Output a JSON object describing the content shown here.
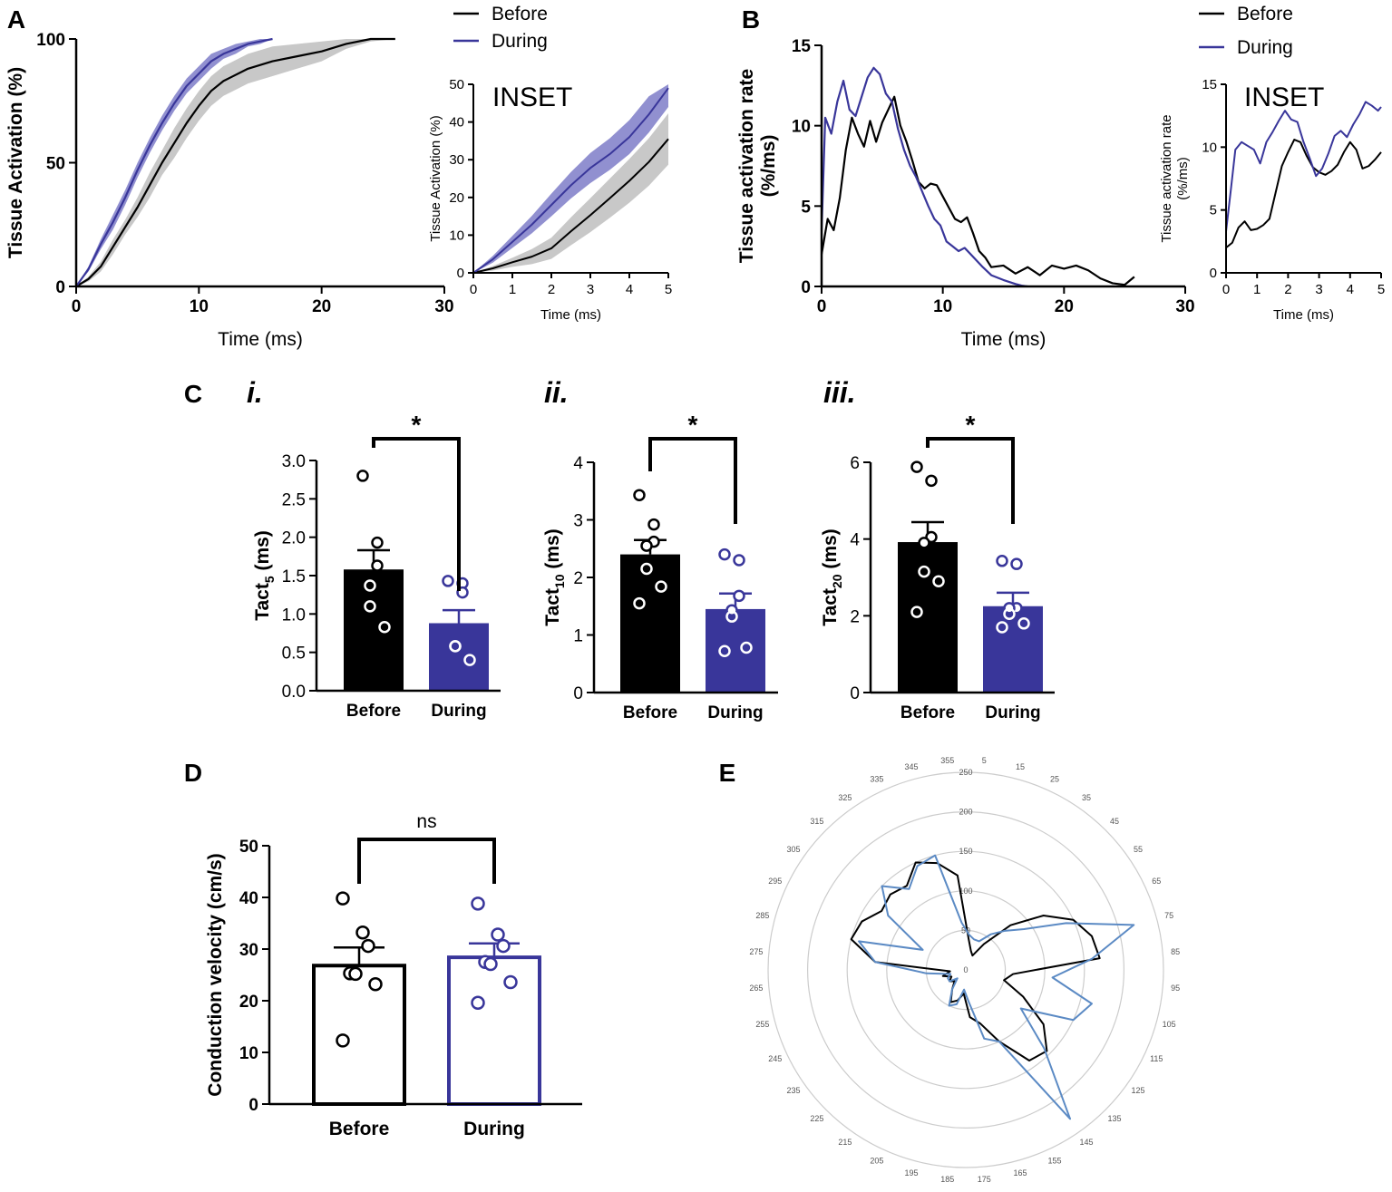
{
  "figure": {
    "panels": [
      "A",
      "B",
      "C",
      "D",
      "E"
    ],
    "colors": {
      "before": "#000000",
      "during": "#39369a",
      "during_band": "#7e7cc8",
      "before_band": "#c8c8c8",
      "polar_during": "#5b8ac4",
      "polar_grid": "#cccccc"
    }
  },
  "chart_data": [
    {
      "id": "A_main",
      "type": "line",
      "panel": "A",
      "xlabel": "Time (ms)",
      "ylabel": "Tissue Activation (%)",
      "xlim": [
        0,
        30
      ],
      "ylim": [
        0,
        100
      ],
      "xticks": [
        0,
        10,
        20,
        30
      ],
      "yticks": [
        0,
        50,
        100
      ],
      "legend": [
        "Before",
        "During"
      ],
      "series": [
        {
          "name": "Before",
          "x": [
            0,
            1,
            2,
            3,
            4,
            5,
            6,
            7,
            8,
            9,
            10,
            11,
            12,
            14,
            16,
            18,
            20,
            22,
            24,
            26
          ],
          "y": [
            0,
            3,
            8,
            16,
            24,
            32,
            41,
            50,
            58,
            66,
            73,
            79,
            83,
            88,
            91,
            93,
            95,
            98,
            100,
            100
          ],
          "band": [
            0,
            1,
            2,
            3,
            3,
            4,
            5,
            5,
            6,
            6,
            6,
            6,
            6,
            6,
            6,
            5,
            4,
            2,
            1,
            0
          ]
        },
        {
          "name": "During",
          "x": [
            0,
            1,
            2,
            3,
            4,
            5,
            6,
            7,
            8,
            9,
            10,
            11,
            12,
            13,
            14,
            15,
            16
          ],
          "y": [
            0,
            7,
            17,
            26,
            36,
            47,
            57,
            66,
            74,
            81,
            86,
            91,
            94,
            96,
            98,
            99,
            100
          ],
          "band": [
            0,
            1,
            2,
            3,
            3,
            3,
            3,
            3,
            3,
            3,
            3,
            3,
            2,
            2,
            1,
            1,
            0
          ]
        }
      ]
    },
    {
      "id": "A_inset",
      "type": "line",
      "panel": "A",
      "title": "INSET",
      "xlabel": "Time (ms)",
      "ylabel": "Tissue Activation (%)",
      "xlim": [
        0,
        5
      ],
      "ylim": [
        0,
        50
      ],
      "xticks": [
        0,
        1,
        2,
        3,
        4,
        5
      ],
      "yticks": [
        0,
        10,
        20,
        30,
        40,
        50
      ],
      "series": [
        {
          "name": "Before",
          "x": [
            0,
            0.5,
            1,
            1.5,
            2,
            2.5,
            3,
            3.5,
            4,
            4.5,
            5
          ],
          "y": [
            0,
            1.2,
            2.8,
            4.3,
            6.5,
            11,
            15.3,
            19.8,
            24.4,
            29.4,
            35.5
          ],
          "band": [
            0,
            0.6,
            1.2,
            2,
            2.8,
            3.7,
            4.5,
            5.2,
            5.8,
            6.3,
            6.8
          ]
        },
        {
          "name": "During",
          "x": [
            0,
            0.5,
            1,
            1.5,
            2,
            2.5,
            3,
            3.5,
            4,
            4.5,
            5
          ],
          "y": [
            0,
            3.6,
            8.2,
            12.8,
            18,
            23.2,
            27.8,
            31.5,
            36,
            42,
            49
          ],
          "band": [
            0,
            0.9,
            1.6,
            2.3,
            3,
            3.5,
            4,
            4.2,
            4.5,
            4.8,
            5
          ]
        }
      ]
    },
    {
      "id": "B_main",
      "type": "line",
      "panel": "B",
      "xlabel": "Time (ms)",
      "ylabel": "Tissue activation rate (%/ms)",
      "xlim": [
        0,
        30
      ],
      "ylim": [
        0,
        15
      ],
      "xticks": [
        0,
        10,
        20,
        30
      ],
      "yticks": [
        0,
        5,
        10,
        15
      ],
      "legend": [
        "Before",
        "During"
      ],
      "series": [
        {
          "name": "Before",
          "x": [
            0,
            0.5,
            1,
            1.5,
            2,
            2.5,
            3,
            3.5,
            4,
            4.5,
            5,
            5.5,
            6,
            6.5,
            7,
            7.5,
            8,
            8.5,
            9,
            9.5,
            10,
            10.5,
            11,
            11.5,
            12,
            12.5,
            13,
            13.5,
            14,
            15,
            16,
            17,
            18,
            19,
            20,
            21,
            22,
            23,
            24,
            25,
            25.8
          ],
          "y": [
            2,
            4.2,
            3.5,
            5.5,
            8.5,
            10.5,
            9.5,
            8.7,
            10.3,
            9,
            10.2,
            11,
            11.8,
            10,
            9,
            7.8,
            6.5,
            6.1,
            6.4,
            6.3,
            5.6,
            4.9,
            4.2,
            4,
            4.3,
            3.3,
            2.2,
            1.8,
            1.2,
            1.3,
            0.8,
            1.2,
            0.7,
            1.3,
            1.1,
            1.3,
            1.0,
            0.5,
            0.2,
            0.1,
            0.6
          ]
        },
        {
          "name": "During",
          "x": [
            0,
            0.3,
            0.8,
            1.3,
            1.8,
            2.3,
            2.8,
            3.3,
            3.8,
            4.3,
            4.8,
            5.3,
            5.8,
            6.3,
            6.8,
            7.3,
            7.8,
            8.3,
            8.8,
            9.3,
            9.8,
            10.3,
            10.8,
            11.3,
            11.8,
            12.3,
            12.8,
            13.3,
            14,
            15,
            16,
            16.5,
            17
          ],
          "y": [
            3.5,
            10.5,
            9.5,
            11.5,
            12.8,
            11,
            10.6,
            11.8,
            13,
            13.6,
            13.2,
            12,
            11.5,
            9.8,
            8.5,
            7.5,
            6.8,
            5.9,
            5.0,
            4.2,
            3.8,
            2.8,
            2.5,
            2.2,
            2.4,
            2.0,
            1.6,
            1.2,
            0.7,
            0.4,
            0.15,
            0.05,
            0
          ]
        }
      ]
    },
    {
      "id": "B_inset",
      "type": "line",
      "panel": "B",
      "title": "INSET",
      "xlabel": "Time (ms)",
      "ylabel": "Tissue activation rate (%/ms)",
      "xlim": [
        0,
        5
      ],
      "ylim": [
        0,
        15
      ],
      "xticks": [
        0,
        1,
        2,
        3,
        4,
        5
      ],
      "yticks": [
        0,
        5,
        10,
        15
      ],
      "series": [
        {
          "name": "Before",
          "x": [
            0,
            0.2,
            0.4,
            0.6,
            0.8,
            1,
            1.2,
            1.4,
            1.6,
            1.8,
            2,
            2.2,
            2.4,
            2.6,
            2.8,
            3,
            3.2,
            3.4,
            3.6,
            3.8,
            4,
            4.2,
            4.4,
            4.6,
            4.8,
            5
          ],
          "y": [
            2,
            2.4,
            3.6,
            4.1,
            3.4,
            3.5,
            3.8,
            4.3,
            6.4,
            8.5,
            9.6,
            10.6,
            10.4,
            9.3,
            8.4,
            8.0,
            7.8,
            8.1,
            8.6,
            9.6,
            10.4,
            9.8,
            8.3,
            8.5,
            9.0,
            9.6
          ]
        },
        {
          "name": "During",
          "x": [
            0,
            0.15,
            0.3,
            0.5,
            0.7,
            0.9,
            1.1,
            1.3,
            1.5,
            1.7,
            1.9,
            2.1,
            2.3,
            2.5,
            2.7,
            2.9,
            3.1,
            3.3,
            3.5,
            3.7,
            3.9,
            4.1,
            4.3,
            4.5,
            4.7,
            4.9,
            5
          ],
          "y": [
            3.3,
            6.5,
            9.8,
            10.4,
            10.1,
            9.8,
            8.7,
            10.4,
            11.2,
            12.1,
            12.9,
            12.2,
            12.0,
            10.4,
            9.1,
            7.7,
            8.3,
            9.5,
            10.9,
            11.3,
            10.8,
            11.8,
            12.6,
            13.6,
            13.3,
            12.9,
            13.2
          ]
        }
      ]
    },
    {
      "id": "C_i",
      "type": "bar",
      "panel": "C",
      "subpanel": "i.",
      "ylabel_main": "Tact",
      "ylabel_sub": "5",
      "ylabel_unit": " (ms)",
      "categories": [
        "Before",
        "During"
      ],
      "values": [
        1.58,
        0.88
      ],
      "sem": [
        0.25,
        0.17
      ],
      "points": [
        [
          2.8,
          1.93,
          1.63,
          1.37,
          1.1,
          0.83
        ],
        [
          1.43,
          1.4,
          1.28,
          0.58,
          0.58,
          0.4
        ]
      ],
      "ylim": [
        0,
        3.0
      ],
      "yticks": [
        "0.0",
        "0.5",
        "1.0",
        "1.5",
        "2.0",
        "2.5",
        "3.0"
      ],
      "significance": "*"
    },
    {
      "id": "C_ii",
      "type": "bar",
      "panel": "C",
      "subpanel": "ii.",
      "ylabel_main": "Tact",
      "ylabel_sub": "10",
      "ylabel_unit": " (ms)",
      "categories": [
        "Before",
        "During"
      ],
      "values": [
        2.4,
        1.45
      ],
      "sem": [
        0.25,
        0.27
      ],
      "points": [
        [
          3.43,
          2.92,
          2.62,
          2.55,
          2.15,
          1.84,
          1.55
        ],
        [
          2.4,
          2.3,
          1.68,
          1.43,
          1.32,
          0.78,
          0.72
        ]
      ],
      "ylim": [
        0,
        4
      ],
      "yticks": [
        "0",
        "1",
        "2",
        "3",
        "4"
      ],
      "significance": "*"
    },
    {
      "id": "C_iii",
      "type": "bar",
      "panel": "C",
      "subpanel": "iii.",
      "ylabel_main": "Tact",
      "ylabel_sub": "20",
      "ylabel_unit": " (ms)",
      "categories": [
        "Before",
        "During"
      ],
      "values": [
        3.92,
        2.25
      ],
      "sem": [
        0.52,
        0.35
      ],
      "points": [
        [
          5.88,
          5.52,
          4.05,
          3.9,
          3.15,
          2.9,
          2.1
        ],
        [
          3.43,
          3.35,
          2.2,
          2.2,
          2.05,
          1.8,
          1.7
        ]
      ],
      "ylim": [
        0,
        6
      ],
      "yticks": [
        "0",
        "2",
        "4",
        "6"
      ],
      "significance": "*"
    },
    {
      "id": "D",
      "type": "bar",
      "panel": "D",
      "ylabel": "Conduction velocity (cm/s)",
      "categories": [
        "Before",
        "During"
      ],
      "values": [
        26.8,
        28.4
      ],
      "sem": [
        3.5,
        2.7
      ],
      "points": [
        [
          39.8,
          33.2,
          30.6,
          25.3,
          25.2,
          23.2,
          12.3
        ],
        [
          38.8,
          32.8,
          30.6,
          27.5,
          27.1,
          23.6,
          19.6
        ]
      ],
      "ylim": [
        0,
        50
      ],
      "yticks": [
        "0",
        "10",
        "20",
        "30",
        "40",
        "50"
      ],
      "significance": "ns"
    },
    {
      "id": "E",
      "type": "radar",
      "panel": "E",
      "angle_labels": [
        "5",
        "15",
        "25",
        "35",
        "45",
        "55",
        "65",
        "75",
        "85",
        "95",
        "105",
        "115",
        "125",
        "135",
        "145",
        "155",
        "165",
        "175",
        "185",
        "195",
        "205",
        "215",
        "225",
        "235",
        "245",
        "255",
        "265",
        "275",
        "285",
        "295",
        "305",
        "315",
        "325",
        "335",
        "345",
        "355"
      ],
      "radial_ticks": [
        "0",
        "50",
        "100",
        "150",
        "200",
        "250"
      ],
      "rlim": [
        0,
        250
      ],
      "series": [
        {
          "name": "Before",
          "angles": [
            5,
            15,
            25,
            35,
            45,
            55,
            65,
            75,
            85,
            95,
            105,
            115,
            125,
            135,
            145,
            155,
            165,
            175,
            185,
            195,
            205,
            215,
            225,
            235,
            245,
            255,
            265,
            275,
            285,
            295,
            305,
            315,
            325,
            335,
            345,
            355
          ],
          "values": [
            40,
            25,
            20,
            40,
            80,
            120,
            150,
            165,
            170,
            60,
            50,
            80,
            120,
            145,
            140,
            100,
            70,
            60,
            30,
            40,
            45,
            30,
            20,
            25,
            20,
            30,
            20,
            115,
            150,
            145,
            130,
            135,
            130,
            150,
            140,
            120
          ]
        },
        {
          "name": "During",
          "angles": [
            5,
            15,
            25,
            35,
            45,
            55,
            65,
            75,
            85,
            95,
            105,
            115,
            125,
            135,
            145,
            155,
            165,
            175,
            185,
            195,
            205,
            215,
            225,
            235,
            245,
            255,
            265,
            275,
            285,
            295,
            305,
            315,
            325,
            335,
            345,
            355
          ],
          "values": [
            45,
            40,
            40,
            55,
            70,
            90,
            140,
            220,
            160,
            110,
            165,
            150,
            85,
            140,
            230,
            100,
            90,
            40,
            25,
            45,
            50,
            30,
            15,
            25,
            25,
            20,
            50,
            115,
            140,
            60,
            120,
            150,
            125,
            145,
            150,
            60
          ]
        }
      ]
    }
  ]
}
